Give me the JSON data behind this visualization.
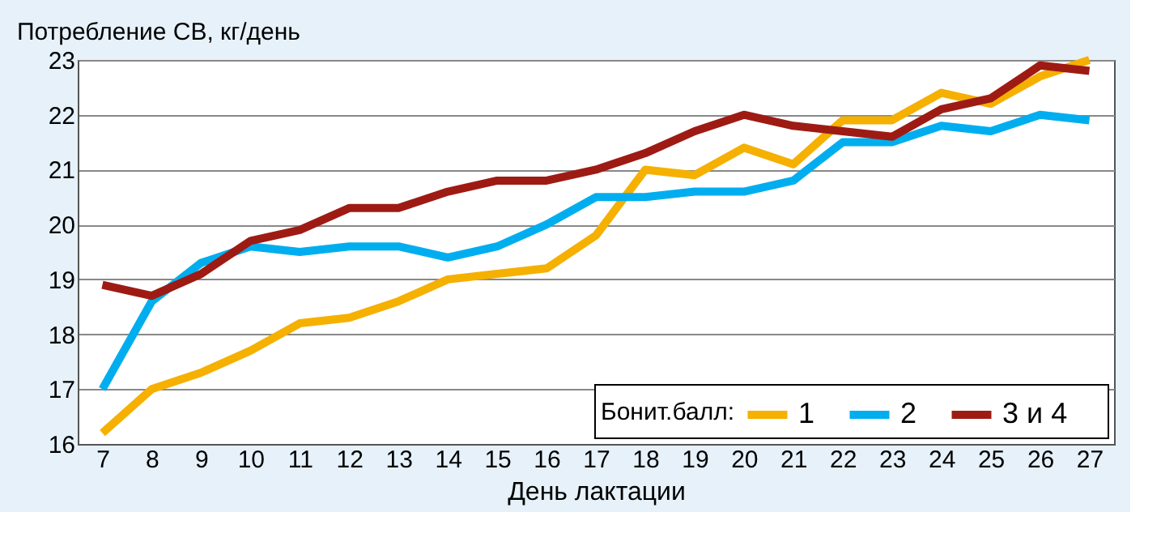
{
  "chart_data": {
    "type": "line",
    "ylabel": "Потребление СВ, кг/день",
    "xlabel": "День лактации",
    "legend_title": "Бонит.балл:",
    "categories": [
      "7",
      "8",
      "9",
      "10",
      "11",
      "12",
      "13",
      "14",
      "15",
      "16",
      "17",
      "18",
      "19",
      "20",
      "21",
      "22",
      "23",
      "24",
      "25",
      "26",
      "27"
    ],
    "series": [
      {
        "name": "1",
        "color": "#f5b000",
        "values": [
          16.2,
          17.0,
          17.3,
          17.7,
          18.2,
          18.3,
          18.6,
          19.0,
          19.1,
          19.2,
          19.8,
          21.0,
          20.9,
          21.4,
          21.1,
          21.9,
          21.9,
          22.4,
          22.2,
          22.7,
          23.0
        ]
      },
      {
        "name": "2",
        "color": "#00aeef",
        "values": [
          17.0,
          18.6,
          19.3,
          19.6,
          19.5,
          19.6,
          19.6,
          19.4,
          19.6,
          20.0,
          20.5,
          20.5,
          20.6,
          20.6,
          20.8,
          21.5,
          21.5,
          21.8,
          21.7,
          22.0,
          21.9
        ]
      },
      {
        "name": "3   и   4",
        "color": "#9e1b14",
        "values": [
          18.9,
          18.7,
          19.1,
          19.7,
          19.9,
          20.3,
          20.3,
          20.6,
          20.8,
          20.8,
          21.0,
          21.3,
          21.7,
          22.0,
          21.8,
          21.7,
          21.6,
          22.1,
          22.3,
          22.9,
          22.8
        ]
      }
    ],
    "ylim": [
      16,
      23
    ],
    "yticks": [
      16,
      17,
      18,
      19,
      20,
      21,
      22,
      23
    ],
    "grid": "y",
    "legend": "bottom right",
    "marker": "none",
    "line_style": "solid"
  }
}
